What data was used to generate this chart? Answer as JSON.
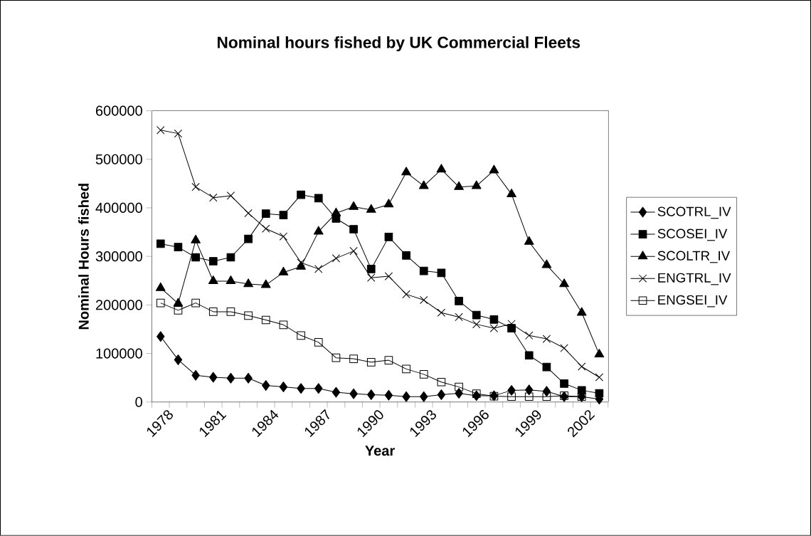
{
  "chart_data": {
    "type": "line",
    "title": "Nominal hours fished by UK Commercial Fleets",
    "xlabel": "Year",
    "ylabel": "Nominal Hours fished",
    "categories": [
      "1978",
      null,
      null,
      "1981",
      null,
      null,
      "1984",
      null,
      null,
      "1987",
      null,
      null,
      "1990",
      null,
      null,
      "1993",
      null,
      null,
      "1996",
      null,
      null,
      "1999",
      null,
      null,
      "2002",
      null
    ],
    "ylim": [
      0,
      600000
    ],
    "yticks": [
      0,
      100000,
      200000,
      300000,
      400000,
      500000,
      600000
    ],
    "grid": false,
    "legend": "right",
    "line_style": "solid",
    "series": [
      {
        "name": "SCOTRL_IV",
        "color": "#000000",
        "marker": "diamond",
        "values": [
          135000,
          87000,
          55000,
          51000,
          49000,
          49000,
          34000,
          31000,
          28000,
          28000,
          20000,
          17000,
          15000,
          14000,
          11000,
          11000,
          15000,
          18000,
          13000,
          13000,
          24000,
          25000,
          22000,
          11000,
          11000,
          6000
        ]
      },
      {
        "name": "SCOSEI_IV",
        "color": "#000000",
        "marker": "square",
        "values": [
          326000,
          319000,
          298000,
          290000,
          298000,
          336000,
          388000,
          385000,
          427000,
          420000,
          378000,
          356000,
          274000,
          340000,
          302000,
          270000,
          266000,
          208000,
          179000,
          170000,
          152000,
          96000,
          72000,
          38000,
          24000,
          18000
        ]
      },
      {
        "name": "SCOLTR_IV",
        "color": "#000000",
        "marker": "triangle",
        "values": [
          235000,
          203000,
          333000,
          249000,
          249000,
          243000,
          241000,
          267000,
          279000,
          351000,
          389000,
          402000,
          396000,
          407000,
          473000,
          445000,
          479000,
          443000,
          445000,
          477000,
          428000,
          330000,
          282000,
          243000,
          184000,
          98000
        ]
      },
      {
        "name": "ENGTRL_IV",
        "color": "#000000",
        "marker": "cross",
        "values": [
          560000,
          553000,
          443000,
          421000,
          425000,
          389000,
          357000,
          341000,
          287000,
          274000,
          296000,
          311000,
          256000,
          259000,
          222000,
          210000,
          184000,
          175000,
          160000,
          152000,
          161000,
          137000,
          130000,
          111000,
          73000,
          51000
        ]
      },
      {
        "name": "ENGSEI_IV",
        "color": "#000000",
        "marker": "square_open",
        "values": [
          204000,
          189000,
          204000,
          186000,
          186000,
          178000,
          169000,
          159000,
          137000,
          123000,
          91000,
          89000,
          82000,
          86000,
          68000,
          57000,
          41000,
          31000,
          17000,
          12000,
          11000,
          11000,
          11000,
          13000,
          11000,
          null
        ]
      }
    ]
  }
}
